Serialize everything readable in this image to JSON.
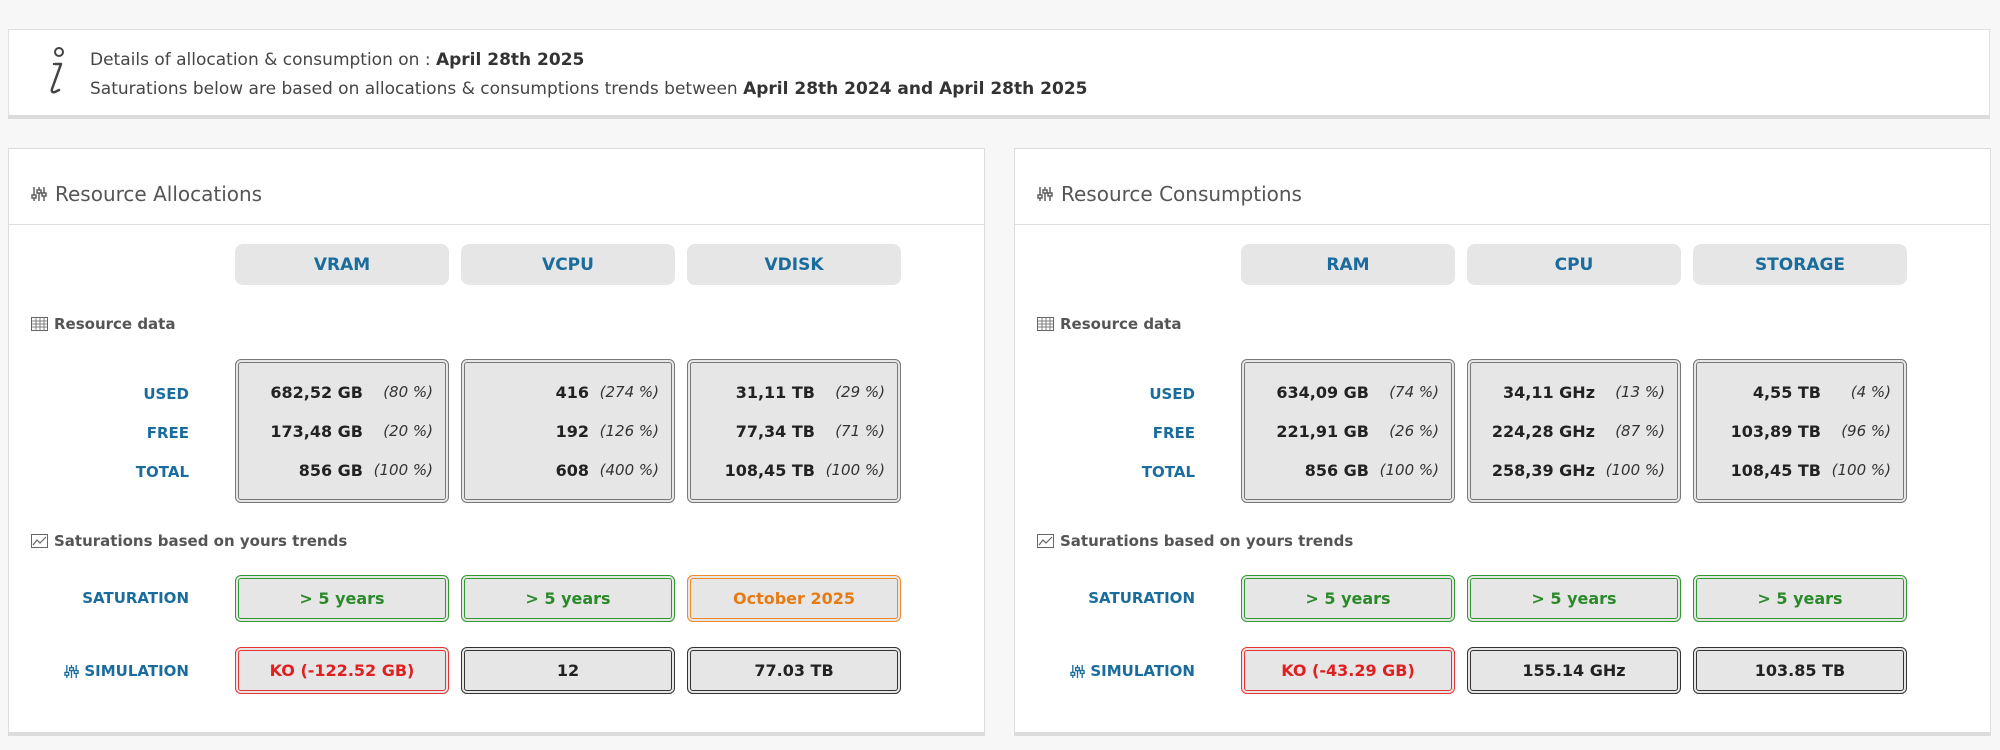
{
  "info": {
    "line1_prefix": "Details of allocation & consumption on : ",
    "line1_date": "April 28th 2025",
    "line2_prefix": "Saturations below are based on allocations & consumptions trends between ",
    "line2_range": "April 28th 2024 and April 28th 2025"
  },
  "sections": {
    "resource_data": "Resource data",
    "saturations": "Saturations based on yours trends"
  },
  "row_labels": {
    "used": "USED",
    "free": "FREE",
    "total": "TOTAL",
    "saturation": "SATURATION",
    "simulation": "SIMULATION"
  },
  "allocations": {
    "title": "Resource Allocations",
    "columns": [
      {
        "name": "VRAM",
        "used": "682,52 GB",
        "used_pct": "(80 %)",
        "free": "173,48 GB",
        "free_pct": "(20 %)",
        "total": "856 GB",
        "total_pct": "(100 %)",
        "saturation": "> 5 years",
        "saturation_status": "ok",
        "simulation": "KO (-122.52 GB)",
        "simulation_status": "ko"
      },
      {
        "name": "VCPU",
        "used": "416",
        "used_pct": "(274 %)",
        "free": "192",
        "free_pct": "(126 %)",
        "total": "608",
        "total_pct": "(400 %)",
        "saturation": "> 5 years",
        "saturation_status": "ok",
        "simulation": "12",
        "simulation_status": "neutral"
      },
      {
        "name": "VDISK",
        "used": "31,11 TB",
        "used_pct": "(29 %)",
        "free": "77,34 TB",
        "free_pct": "(71 %)",
        "total": "108,45 TB",
        "total_pct": "(100 %)",
        "saturation": "October 2025",
        "saturation_status": "warn",
        "simulation": "77.03 TB",
        "simulation_status": "neutral"
      }
    ]
  },
  "consumptions": {
    "title": "Resource Consumptions",
    "columns": [
      {
        "name": "RAM",
        "used": "634,09 GB",
        "used_pct": "(74 %)",
        "free": "221,91 GB",
        "free_pct": "(26 %)",
        "total": "856 GB",
        "total_pct": "(100 %)",
        "saturation": "> 5 years",
        "saturation_status": "ok",
        "simulation": "KO (-43.29 GB)",
        "simulation_status": "ko"
      },
      {
        "name": "CPU",
        "used": "34,11 GHz",
        "used_pct": "(13 %)",
        "free": "224,28 GHz",
        "free_pct": "(87 %)",
        "total": "258,39 GHz",
        "total_pct": "(100 %)",
        "saturation": "> 5 years",
        "saturation_status": "ok",
        "simulation": "155.14 GHz",
        "simulation_status": "neutral"
      },
      {
        "name": "STORAGE",
        "used": "4,55 TB",
        "used_pct": "(4 %)",
        "free": "103,89 TB",
        "free_pct": "(96 %)",
        "total": "108,45 TB",
        "total_pct": "(100 %)",
        "saturation": "> 5 years",
        "saturation_status": "ok",
        "simulation": "103.85 TB",
        "simulation_status": "neutral"
      }
    ]
  },
  "colors": {
    "label_blue": "#1a6c9c",
    "ok_green": "#2a8a2a",
    "warn_orange": "#e67b14",
    "ko_red": "#e02020"
  },
  "icons": {
    "info": "info-icon",
    "panel": "sliders-icon",
    "resource_data": "table-icon",
    "saturations": "chart-icon",
    "simulation": "sliders-icon"
  }
}
